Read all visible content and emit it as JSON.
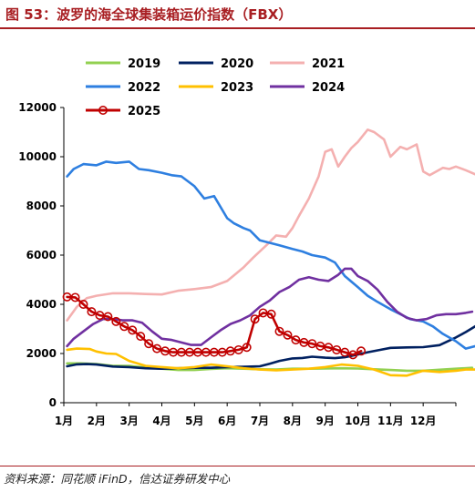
{
  "title": "图 53：波罗的海全球集装箱运价指数（FBX）",
  "source": "资料来源：同花顺 iFinD，信达证券研发中心",
  "chart_data": {
    "type": "line",
    "xlabel": "",
    "ylabel": "",
    "ylim": [
      0,
      12000
    ],
    "yticks": [
      0,
      2000,
      4000,
      6000,
      8000,
      10000,
      12000
    ],
    "xticks": [
      "1月",
      "2月",
      "3月",
      "4月",
      "5月",
      "6月",
      "7月",
      "8月",
      "9月",
      "10月",
      "11月",
      "12月"
    ],
    "legend": "top, three columns",
    "grid": false,
    "series": [
      {
        "name": "2019",
        "color": "#92d050",
        "marker": false,
        "x": [
          0.1,
          0.5,
          1,
          1.5,
          2,
          2.5,
          3,
          3.5,
          4,
          4.5,
          5,
          5.5,
          6,
          6.5,
          7,
          7.5,
          8,
          8.5,
          9,
          9.5,
          10,
          10.5,
          11,
          11.5,
          12,
          12.5
        ],
        "y": [
          1600,
          1600,
          1570,
          1500,
          1500,
          1430,
          1380,
          1330,
          1330,
          1370,
          1400,
          1380,
          1360,
          1350,
          1380,
          1380,
          1390,
          1400,
          1390,
          1360,
          1330,
          1300,
          1300,
          1340,
          1380,
          1420
        ]
      },
      {
        "name": "2020",
        "color": "#002060",
        "marker": false,
        "x": [
          0.1,
          0.4,
          0.7,
          1,
          1.5,
          2,
          2.5,
          3,
          3.5,
          4,
          4.5,
          5,
          5.5,
          6,
          6.3,
          6.6,
          7,
          7.3,
          7.6,
          8,
          8.3,
          8.6,
          9,
          9.3,
          9.7,
          10,
          10.5,
          11,
          11.5,
          12,
          12.3,
          12.6
        ],
        "y": [
          1480,
          1560,
          1570,
          1550,
          1470,
          1450,
          1400,
          1380,
          1400,
          1420,
          1420,
          1450,
          1460,
          1480,
          1580,
          1700,
          1800,
          1820,
          1870,
          1830,
          1810,
          1850,
          1960,
          2050,
          2150,
          2230,
          2250,
          2260,
          2340,
          2650,
          2870,
          3110
        ]
      },
      {
        "name": "2021",
        "color": "#f4b0b0",
        "marker": false,
        "x": [
          0.1,
          0.4,
          0.7,
          1,
          1.5,
          2,
          2.5,
          3,
          3.5,
          4,
          4.5,
          5,
          5.5,
          5.8,
          6.2,
          6.5,
          6.8,
          7,
          7.2,
          7.5,
          7.8,
          8,
          8.2,
          8.4,
          8.6,
          8.8,
          9,
          9.3,
          9.5,
          9.8,
          10,
          10.3,
          10.5,
          10.8,
          11,
          11.2,
          11.4,
          11.6,
          11.8,
          12,
          12.3,
          12.6
        ],
        "y": [
          3350,
          3900,
          4250,
          4350,
          4450,
          4450,
          4420,
          4400,
          4550,
          4620,
          4700,
          4950,
          5500,
          5900,
          6400,
          6800,
          6750,
          7100,
          7600,
          8300,
          9200,
          10200,
          10300,
          9600,
          10000,
          10350,
          10600,
          11100,
          11000,
          10700,
          10000,
          10400,
          10300,
          10500,
          9400,
          9250,
          9400,
          9550,
          9500,
          9600,
          9450,
          9280
        ]
      },
      {
        "name": "2022",
        "color": "#2e7fe0",
        "marker": false,
        "x": [
          0.1,
          0.3,
          0.6,
          1,
          1.3,
          1.6,
          2,
          2.3,
          2.6,
          3,
          3.3,
          3.6,
          4,
          4.3,
          4.6,
          5,
          5.2,
          5.5,
          5.7,
          6,
          6.3,
          6.6,
          7,
          7.3,
          7.6,
          8,
          8.3,
          8.6,
          9,
          9.3,
          9.6,
          10,
          10.3,
          10.6,
          11,
          11.3,
          11.6,
          12,
          12.3,
          12.6
        ],
        "y": [
          9200,
          9500,
          9700,
          9650,
          9800,
          9750,
          9800,
          9500,
          9450,
          9350,
          9250,
          9200,
          8800,
          8300,
          8400,
          7500,
          7300,
          7100,
          7000,
          6600,
          6500,
          6400,
          6250,
          6150,
          6000,
          5900,
          5700,
          5150,
          4700,
          4350,
          4100,
          3800,
          3600,
          3400,
          3300,
          3100,
          2800,
          2500,
          2200,
          2300
        ]
      },
      {
        "name": "2023",
        "color": "#ffc000",
        "marker": false,
        "x": [
          0.1,
          0.4,
          0.8,
          1,
          1.3,
          1.6,
          2,
          2.5,
          3,
          3.5,
          4,
          4.5,
          5,
          5.5,
          6,
          6.5,
          7,
          7.5,
          8,
          8.5,
          9,
          9.5,
          10,
          10.5,
          11,
          11.5,
          12,
          12.3,
          12.6
        ],
        "y": [
          2150,
          2200,
          2180,
          2080,
          2000,
          1980,
          1700,
          1500,
          1450,
          1400,
          1450,
          1550,
          1480,
          1400,
          1350,
          1320,
          1350,
          1380,
          1450,
          1550,
          1500,
          1350,
          1120,
          1100,
          1300,
          1250,
          1300,
          1350,
          1350
        ]
      },
      {
        "name": "2024",
        "color": "#7030a0",
        "marker": false,
        "x": [
          0.1,
          0.3,
          0.6,
          0.9,
          1.2,
          1.5,
          1.8,
          2.1,
          2.4,
          2.7,
          3,
          3.3,
          3.6,
          3.9,
          4.2,
          4.5,
          4.8,
          5.1,
          5.4,
          5.7,
          6,
          6.3,
          6.6,
          6.9,
          7.2,
          7.5,
          7.8,
          8.1,
          8.4,
          8.6,
          8.8,
          9,
          9.3,
          9.6,
          9.9,
          10.2,
          10.5,
          10.8,
          11.1,
          11.4,
          11.7,
          12,
          12.3,
          12.5
        ],
        "y": [
          2300,
          2600,
          2900,
          3200,
          3400,
          3400,
          3350,
          3350,
          3250,
          2900,
          2600,
          2550,
          2450,
          2350,
          2350,
          2650,
          2950,
          3200,
          3350,
          3550,
          3900,
          4150,
          4500,
          4700,
          5000,
          5100,
          5000,
          4950,
          5200,
          5450,
          5450,
          5150,
          4950,
          4600,
          4100,
          3700,
          3450,
          3350,
          3400,
          3550,
          3600,
          3600,
          3650,
          3700
        ]
      },
      {
        "name": "2025",
        "color": "#c00000",
        "marker": true,
        "x": [
          0.1,
          0.35,
          0.6,
          0.85,
          1.1,
          1.35,
          1.6,
          1.85,
          2.1,
          2.35,
          2.6,
          2.85,
          3.1,
          3.35,
          3.6,
          3.85,
          4.1,
          4.35,
          4.6,
          4.85,
          5.1,
          5.35,
          5.6,
          5.85,
          6.1,
          6.35,
          6.6,
          6.85,
          7.1,
          7.35,
          7.6,
          7.85,
          8.1,
          8.35,
          8.6,
          8.85,
          9.1
        ],
        "y": [
          4300,
          4280,
          4000,
          3700,
          3550,
          3500,
          3300,
          3100,
          2950,
          2700,
          2400,
          2200,
          2100,
          2050,
          2050,
          2050,
          2050,
          2050,
          2050,
          2050,
          2100,
          2150,
          2250,
          3400,
          3650,
          3600,
          2900,
          2750,
          2550,
          2450,
          2400,
          2300,
          2250,
          2150,
          2050,
          1950,
          2100
        ]
      }
    ]
  }
}
